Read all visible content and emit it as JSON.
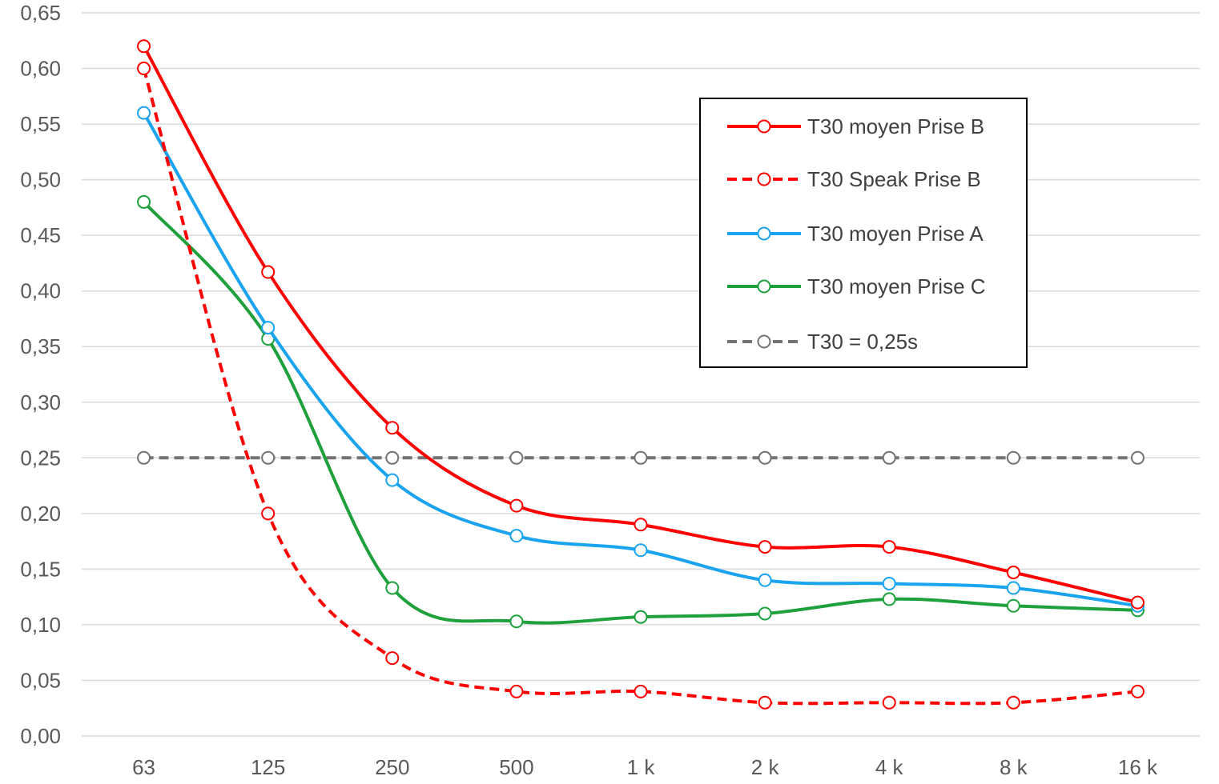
{
  "chart_data": {
    "type": "line",
    "title": "",
    "xlabel": "",
    "ylabel": "",
    "categories": [
      "63",
      "125",
      "250",
      "500",
      "1 k",
      "2 k",
      "4 k",
      "8 k",
      "16 k"
    ],
    "ylim": [
      0,
      0.65
    ],
    "yticks": [
      "0,00",
      "0,05",
      "0,10",
      "0,15",
      "0,20",
      "0,25",
      "0,30",
      "0,35",
      "0,40",
      "0,45",
      "0,50",
      "0,55",
      "0,60",
      "0,65"
    ],
    "grid": true,
    "legend_position": "top-right",
    "series": [
      {
        "name": "T30 moyen Prise B",
        "color": "#ff0000",
        "dashed": false,
        "values": [
          0.62,
          0.417,
          0.277,
          0.207,
          0.19,
          0.17,
          0.17,
          0.147,
          0.12
        ]
      },
      {
        "name": "T30 Speak Prise B",
        "color": "#ff0000",
        "dashed": true,
        "values": [
          0.6,
          0.2,
          0.07,
          0.04,
          0.04,
          0.03,
          0.03,
          0.03,
          0.04
        ]
      },
      {
        "name": "T30 moyen Prise A",
        "color": "#1aa3ee",
        "dashed": false,
        "values": [
          0.56,
          0.367,
          0.23,
          0.18,
          0.167,
          0.14,
          0.137,
          0.133,
          0.117
        ]
      },
      {
        "name": "T30 moyen Prise C",
        "color": "#1ea03c",
        "dashed": false,
        "values": [
          0.48,
          0.357,
          0.133,
          0.103,
          0.107,
          0.11,
          0.123,
          0.117,
          0.113
        ]
      },
      {
        "name": "T30 = 0,25s",
        "color": "#737373",
        "dashed": true,
        "values": [
          0.25,
          0.25,
          0.25,
          0.25,
          0.25,
          0.25,
          0.25,
          0.25,
          0.25
        ]
      }
    ]
  }
}
